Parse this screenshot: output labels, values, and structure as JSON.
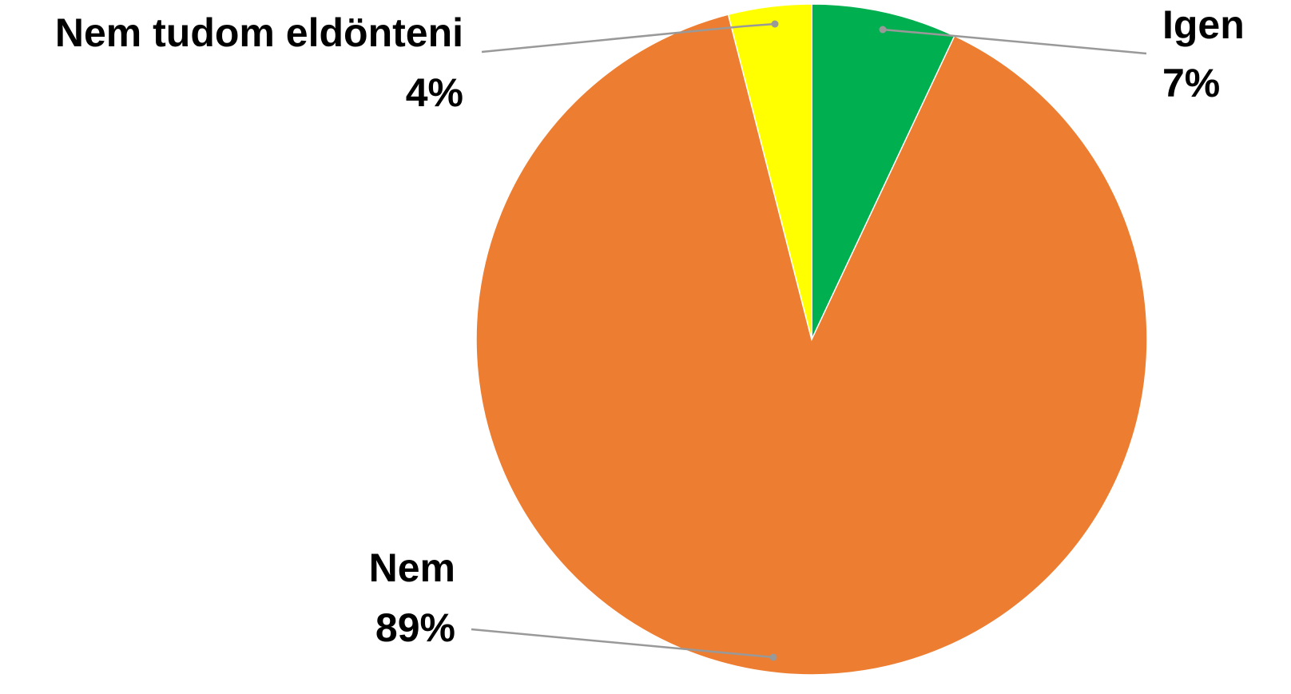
{
  "chart_data": {
    "type": "pie",
    "categories": [
      "Igen",
      "Nem",
      "Nem tudom eldönteni"
    ],
    "values": [
      7,
      89,
      4
    ],
    "value_labels": [
      "7%",
      "89%",
      "4%"
    ],
    "colors": [
      "#00b050",
      "#ed7d31",
      "#ffff00"
    ]
  }
}
